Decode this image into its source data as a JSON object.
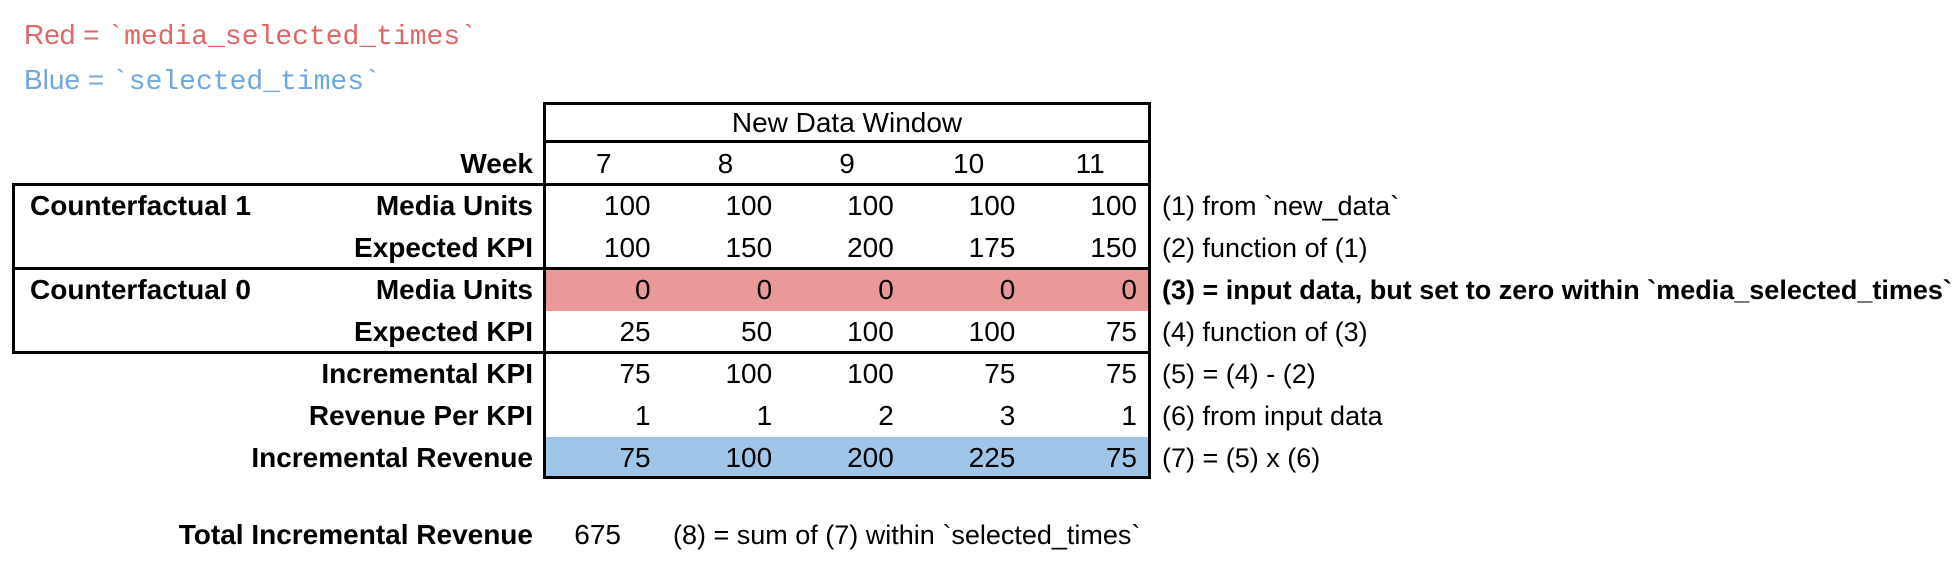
{
  "legend": {
    "red_label": "Red",
    "red_eq": " = ",
    "red_code": "`media_selected_times`",
    "blue_label": "Blue",
    "blue_eq": " = ",
    "blue_code": "`selected_times`",
    "red_color": "#E06666",
    "blue_color": "#6FA8DC"
  },
  "table": {
    "header": "New Data Window",
    "week_label": "Week",
    "weeks": [
      "7",
      "8",
      "9",
      "10",
      "11"
    ],
    "groups": [
      {
        "label": "Counterfactual 1"
      },
      {
        "label": "Counterfactual 0"
      }
    ],
    "fill_colors": {
      "red": "#EA9999",
      "blue": "#9FC5E8"
    },
    "rows": [
      {
        "label": "Media Units",
        "values": [
          "100",
          "100",
          "100",
          "100",
          "100"
        ],
        "annotation": "(1) from `new_data`",
        "fill": null,
        "annotation_bold": false
      },
      {
        "label": "Expected KPI",
        "values": [
          "100",
          "150",
          "200",
          "175",
          "150"
        ],
        "annotation": "(2) function of (1)",
        "fill": null,
        "annotation_bold": false
      },
      {
        "label": "Media Units",
        "values": [
          "0",
          "0",
          "0",
          "0",
          "0"
        ],
        "annotation": "(3) = input data, but set to zero within `media_selected_times`",
        "fill": "red",
        "annotation_bold": true
      },
      {
        "label": "Expected KPI",
        "values": [
          "25",
          "50",
          "100",
          "100",
          "75"
        ],
        "annotation": "(4) function of (3)",
        "fill": null,
        "annotation_bold": false
      },
      {
        "label": "Incremental KPI",
        "values": [
          "75",
          "100",
          "100",
          "75",
          "75"
        ],
        "annotation": "(5) = (4) - (2)",
        "fill": null,
        "annotation_bold": false
      },
      {
        "label": "Revenue Per KPI",
        "values": [
          "1",
          "1",
          "2",
          "3",
          "1"
        ],
        "annotation": "(6) from input data",
        "fill": null,
        "annotation_bold": false
      },
      {
        "label": "Incremental Revenue",
        "values": [
          "75",
          "100",
          "200",
          "225",
          "75"
        ],
        "annotation": "(7) = (5) x (6)",
        "fill": "blue",
        "annotation_bold": false
      }
    ]
  },
  "total": {
    "label": "Total Incremental Revenue",
    "value": "675",
    "annotation": "(8) = sum of (7) within `selected_times`"
  }
}
